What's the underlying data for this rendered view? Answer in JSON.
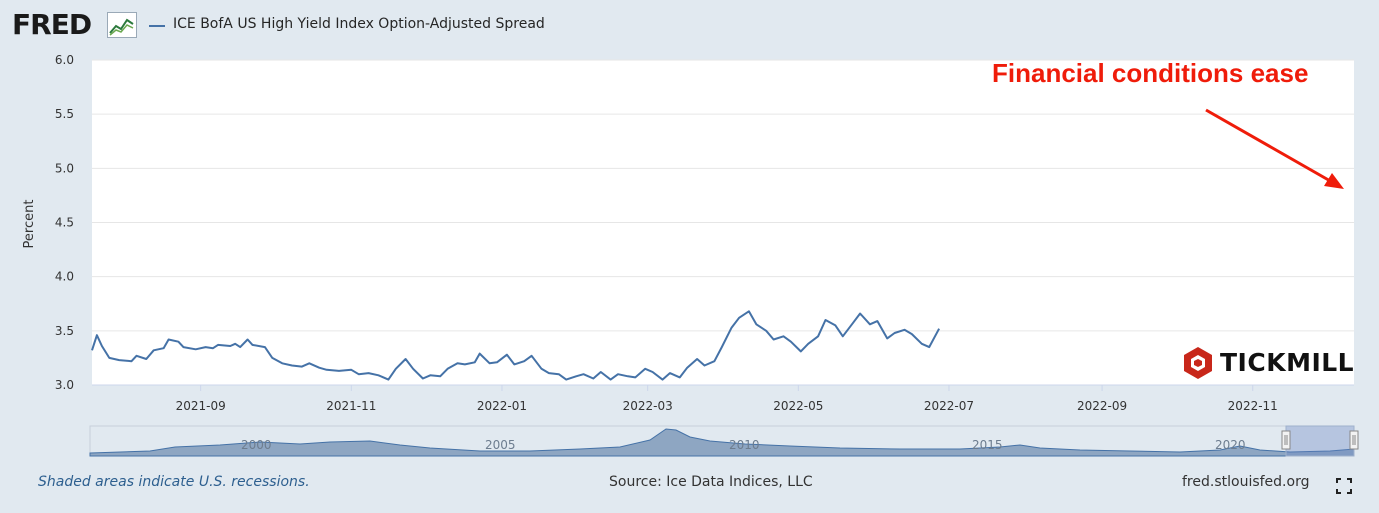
{
  "header": {
    "logo_text": "FRED",
    "series_label": "ICE BofA US High Yield Index Option-Adjusted Spread",
    "series_color": "#4572a7"
  },
  "footer": {
    "recession_note": "Shaded areas indicate U.S. recessions.",
    "source": "Source: Ice Data Indices, LLC",
    "url": "fred.stlouisfed.org"
  },
  "watermark": {
    "text": "TICKMILL"
  },
  "annotation": {
    "text": "Financial conditions ease",
    "color": "#ef1c0a"
  },
  "navigator": {
    "year_labels": [
      "2000",
      "2005",
      "2010",
      "2015",
      "2020"
    ]
  },
  "chart_data": {
    "type": "line",
    "title": "",
    "ylabel": "Percent",
    "xlabel": "",
    "ylim": [
      3.0,
      6.0
    ],
    "yticks": [
      "3.0",
      "3.5",
      "4.0",
      "4.5",
      "5.0",
      "5.5",
      "6.0"
    ],
    "xticks": [
      "2021-09",
      "2021-11",
      "2022-01",
      "2022-03",
      "2022-05",
      "2022-07",
      "2022-09",
      "2022-11"
    ],
    "grid": true,
    "series": [
      {
        "name": "ICE BofA US High Yield Index Option-Adjusted Spread",
        "color": "#4572a7",
        "points": [
          [
            "2021-07-19",
            3.32
          ],
          [
            "2021-07-21",
            3.46
          ],
          [
            "2021-07-23",
            3.36
          ],
          [
            "2021-07-26",
            3.25
          ],
          [
            "2021-07-30",
            3.23
          ],
          [
            "2021-08-04",
            3.22
          ],
          [
            "2021-08-06",
            3.27
          ],
          [
            "2021-08-10",
            3.24
          ],
          [
            "2021-08-13",
            3.32
          ],
          [
            "2021-08-17",
            3.34
          ],
          [
            "2021-08-19",
            3.42
          ],
          [
            "2021-08-23",
            3.4
          ],
          [
            "2021-08-25",
            3.35
          ],
          [
            "2021-08-30",
            3.33
          ],
          [
            "2021-09-03",
            3.35
          ],
          [
            "2021-09-06",
            3.34
          ],
          [
            "2021-09-08",
            3.37
          ],
          [
            "2021-09-13",
            3.36
          ],
          [
            "2021-09-15",
            3.38
          ],
          [
            "2021-09-17",
            3.35
          ],
          [
            "2021-09-20",
            3.42
          ],
          [
            "2021-09-22",
            3.37
          ],
          [
            "2021-09-27",
            3.35
          ],
          [
            "2021-09-30",
            3.25
          ],
          [
            "2021-10-04",
            3.2
          ],
          [
            "2021-10-08",
            3.18
          ],
          [
            "2021-10-12",
            3.17
          ],
          [
            "2021-10-15",
            3.2
          ],
          [
            "2021-10-19",
            3.16
          ],
          [
            "2021-10-22",
            3.14
          ],
          [
            "2021-10-27",
            3.13
          ],
          [
            "2021-11-01",
            3.14
          ],
          [
            "2021-11-04",
            3.1
          ],
          [
            "2021-11-08",
            3.11
          ],
          [
            "2021-11-12",
            3.09
          ],
          [
            "2021-11-16",
            3.05
          ],
          [
            "2021-11-19",
            3.15
          ],
          [
            "2021-11-23",
            3.24
          ],
          [
            "2021-11-26",
            3.15
          ],
          [
            "2021-11-30",
            3.06
          ],
          [
            "2021-12-03",
            3.09
          ],
          [
            "2021-12-07",
            3.08
          ],
          [
            "2021-12-10",
            3.15
          ],
          [
            "2021-12-14",
            3.2
          ],
          [
            "2021-12-17",
            3.19
          ],
          [
            "2021-12-21",
            3.21
          ],
          [
            "2021-12-23",
            3.29
          ],
          [
            "2021-12-27",
            3.2
          ],
          [
            "2021-12-30",
            3.21
          ],
          [
            "2022-01-03",
            3.28
          ],
          [
            "2022-01-06",
            3.19
          ],
          [
            "2022-01-10",
            3.22
          ],
          [
            "2022-01-13",
            3.27
          ],
          [
            "2022-01-17",
            3.15
          ],
          [
            "2022-01-20",
            3.11
          ],
          [
            "2022-01-24",
            3.1
          ],
          [
            "2022-01-27",
            3.05
          ],
          [
            "2022-01-31",
            3.08
          ],
          [
            "2022-02-03",
            3.1
          ],
          [
            "2022-02-07",
            3.06
          ],
          [
            "2022-02-10",
            3.12
          ],
          [
            "2022-02-14",
            3.05
          ],
          [
            "2022-02-17",
            3.1
          ],
          [
            "2022-02-21",
            3.08
          ],
          [
            "2022-02-24",
            3.07
          ],
          [
            "2022-02-28",
            3.15
          ],
          [
            "2022-03-03",
            3.12
          ],
          [
            "2022-03-07",
            3.05
          ],
          [
            "2022-03-10",
            3.11
          ],
          [
            "2022-03-14",
            3.07
          ],
          [
            "2022-03-17",
            3.16
          ],
          [
            "2022-03-21",
            3.24
          ],
          [
            "2022-03-24",
            3.18
          ],
          [
            "2022-03-28",
            3.22
          ],
          [
            "2022-03-31",
            3.35
          ],
          [
            "2022-04-04",
            3.53
          ],
          [
            "2022-04-07",
            3.62
          ],
          [
            "2022-04-11",
            3.68
          ],
          [
            "2022-04-14",
            3.56
          ],
          [
            "2022-04-18",
            3.5
          ],
          [
            "2022-04-21",
            3.42
          ],
          [
            "2022-04-25",
            3.45
          ],
          [
            "2022-04-28",
            3.4
          ],
          [
            "2022-05-02",
            3.31
          ],
          [
            "2022-05-05",
            3.38
          ],
          [
            "2022-05-09",
            3.45
          ],
          [
            "2022-05-12",
            3.6
          ],
          [
            "2022-05-16",
            3.55
          ],
          [
            "2022-05-19",
            3.45
          ],
          [
            "2022-05-23",
            3.57
          ],
          [
            "2022-05-26",
            3.66
          ],
          [
            "2022-05-30",
            3.56
          ],
          [
            "2022-06-02",
            3.59
          ],
          [
            "2022-06-06",
            3.43
          ],
          [
            "2022-06-09",
            3.48
          ],
          [
            "2022-06-13",
            3.51
          ],
          [
            "2022-06-16",
            3.47
          ],
          [
            "2022-06-20",
            3.38
          ],
          [
            "2022-06-23",
            3.35
          ],
          [
            "2022-06-27",
            3.52
          ]
        ]
      }
    ]
  }
}
